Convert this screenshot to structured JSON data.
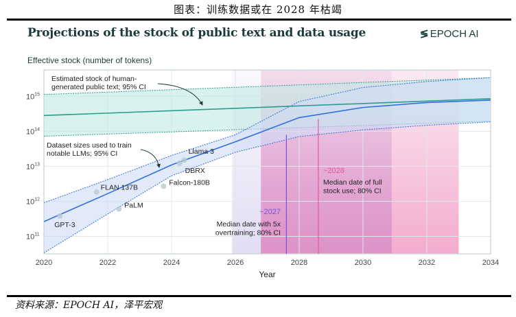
{
  "caption": "图表：训练数据或在 2028 年枯竭",
  "source": "资料来源：EPOCH AI，泽平宏观",
  "logo_text": "EPOCH AI",
  "chart_data": {
    "type": "line",
    "title": "Projections of the stock of public text and data usage",
    "ylabel": "Effective stock (number of tokens)",
    "xlabel": "Year",
    "y_scale": "log10",
    "xlim": [
      2020,
      2034
    ],
    "ylim_log10": [
      10.5,
      15.75
    ],
    "x_ticks": [
      "2020",
      "2022",
      "2024",
      "2026",
      "2028",
      "2030",
      "2032",
      "2034"
    ],
    "y_ticks_log10": [
      11,
      12,
      13,
      14,
      15
    ],
    "grid": true,
    "colors": {
      "stock": "#2a9d8f",
      "stock_band": "#bfeae3",
      "dataset": "#2f6fe0",
      "dataset_band": "#cfdcf7",
      "full_stock_ci": "#f2a7cc",
      "overtrain_ci": "#cfc6ee",
      "overtrain_median": "#7a4fd6",
      "full_stock_median": "#e8569a"
    },
    "stock": {
      "label": "Estimated stock of human-generated public text; 95% CI",
      "label_lines": [
        "Estimated stock of human-",
        "generated public text; 95% CI"
      ],
      "x": [
        2020,
        2034
      ],
      "median_log10": [
        14.45,
        14.93
      ],
      "upper_log10": [
        15.05,
        15.53
      ],
      "lower_log10": [
        13.86,
        14.29
      ]
    },
    "dataset": {
      "label": "Dataset sizes used to train notable LLMs; 95% CI",
      "label_lines": [
        "Dataset sizes used to train",
        "notable LLMs; 95% CI"
      ],
      "x": [
        2020,
        2022,
        2024,
        2026,
        2028,
        2030,
        2032,
        2034
      ],
      "median_log10": [
        11.42,
        12.22,
        13.04,
        13.7,
        14.39,
        14.68,
        14.82,
        14.89
      ],
      "upper_log10": [
        11.96,
        12.62,
        13.31,
        13.9,
        14.85,
        15.25,
        15.42,
        15.53
      ],
      "lower_log10": [
        10.53,
        11.64,
        12.73,
        13.4,
        13.85,
        14.04,
        14.17,
        14.27
      ]
    },
    "models": [
      {
        "name": "GPT-3",
        "x": 2020.5,
        "y_log10": 11.58
      },
      {
        "name": "FLAN 137B",
        "x": 2021.65,
        "y_log10": 12.27
      },
      {
        "name": "PaLM",
        "x": 2022.35,
        "y_log10": 11.78
      },
      {
        "name": "Falcon-180B",
        "x": 2023.75,
        "y_log10": 12.43
      },
      {
        "name": "DBRX",
        "x": 2024.25,
        "y_log10": 13.09
      },
      {
        "name": "Llama 3",
        "x": 2024.4,
        "y_log10": 13.18
      }
    ],
    "overtraining": {
      "median_label": "~2027",
      "median": 2027.6,
      "ci": [
        2025.9,
        2030.9
      ],
      "label_lines": [
        "Median date with 5x",
        "overtraining; 80% CI"
      ]
    },
    "full_stock": {
      "median_label": "~2028",
      "median": 2028.6,
      "ci": [
        2026.8,
        2033.0
      ],
      "label_lines": [
        "Median date of full",
        "stock use; 80% CI"
      ]
    }
  }
}
